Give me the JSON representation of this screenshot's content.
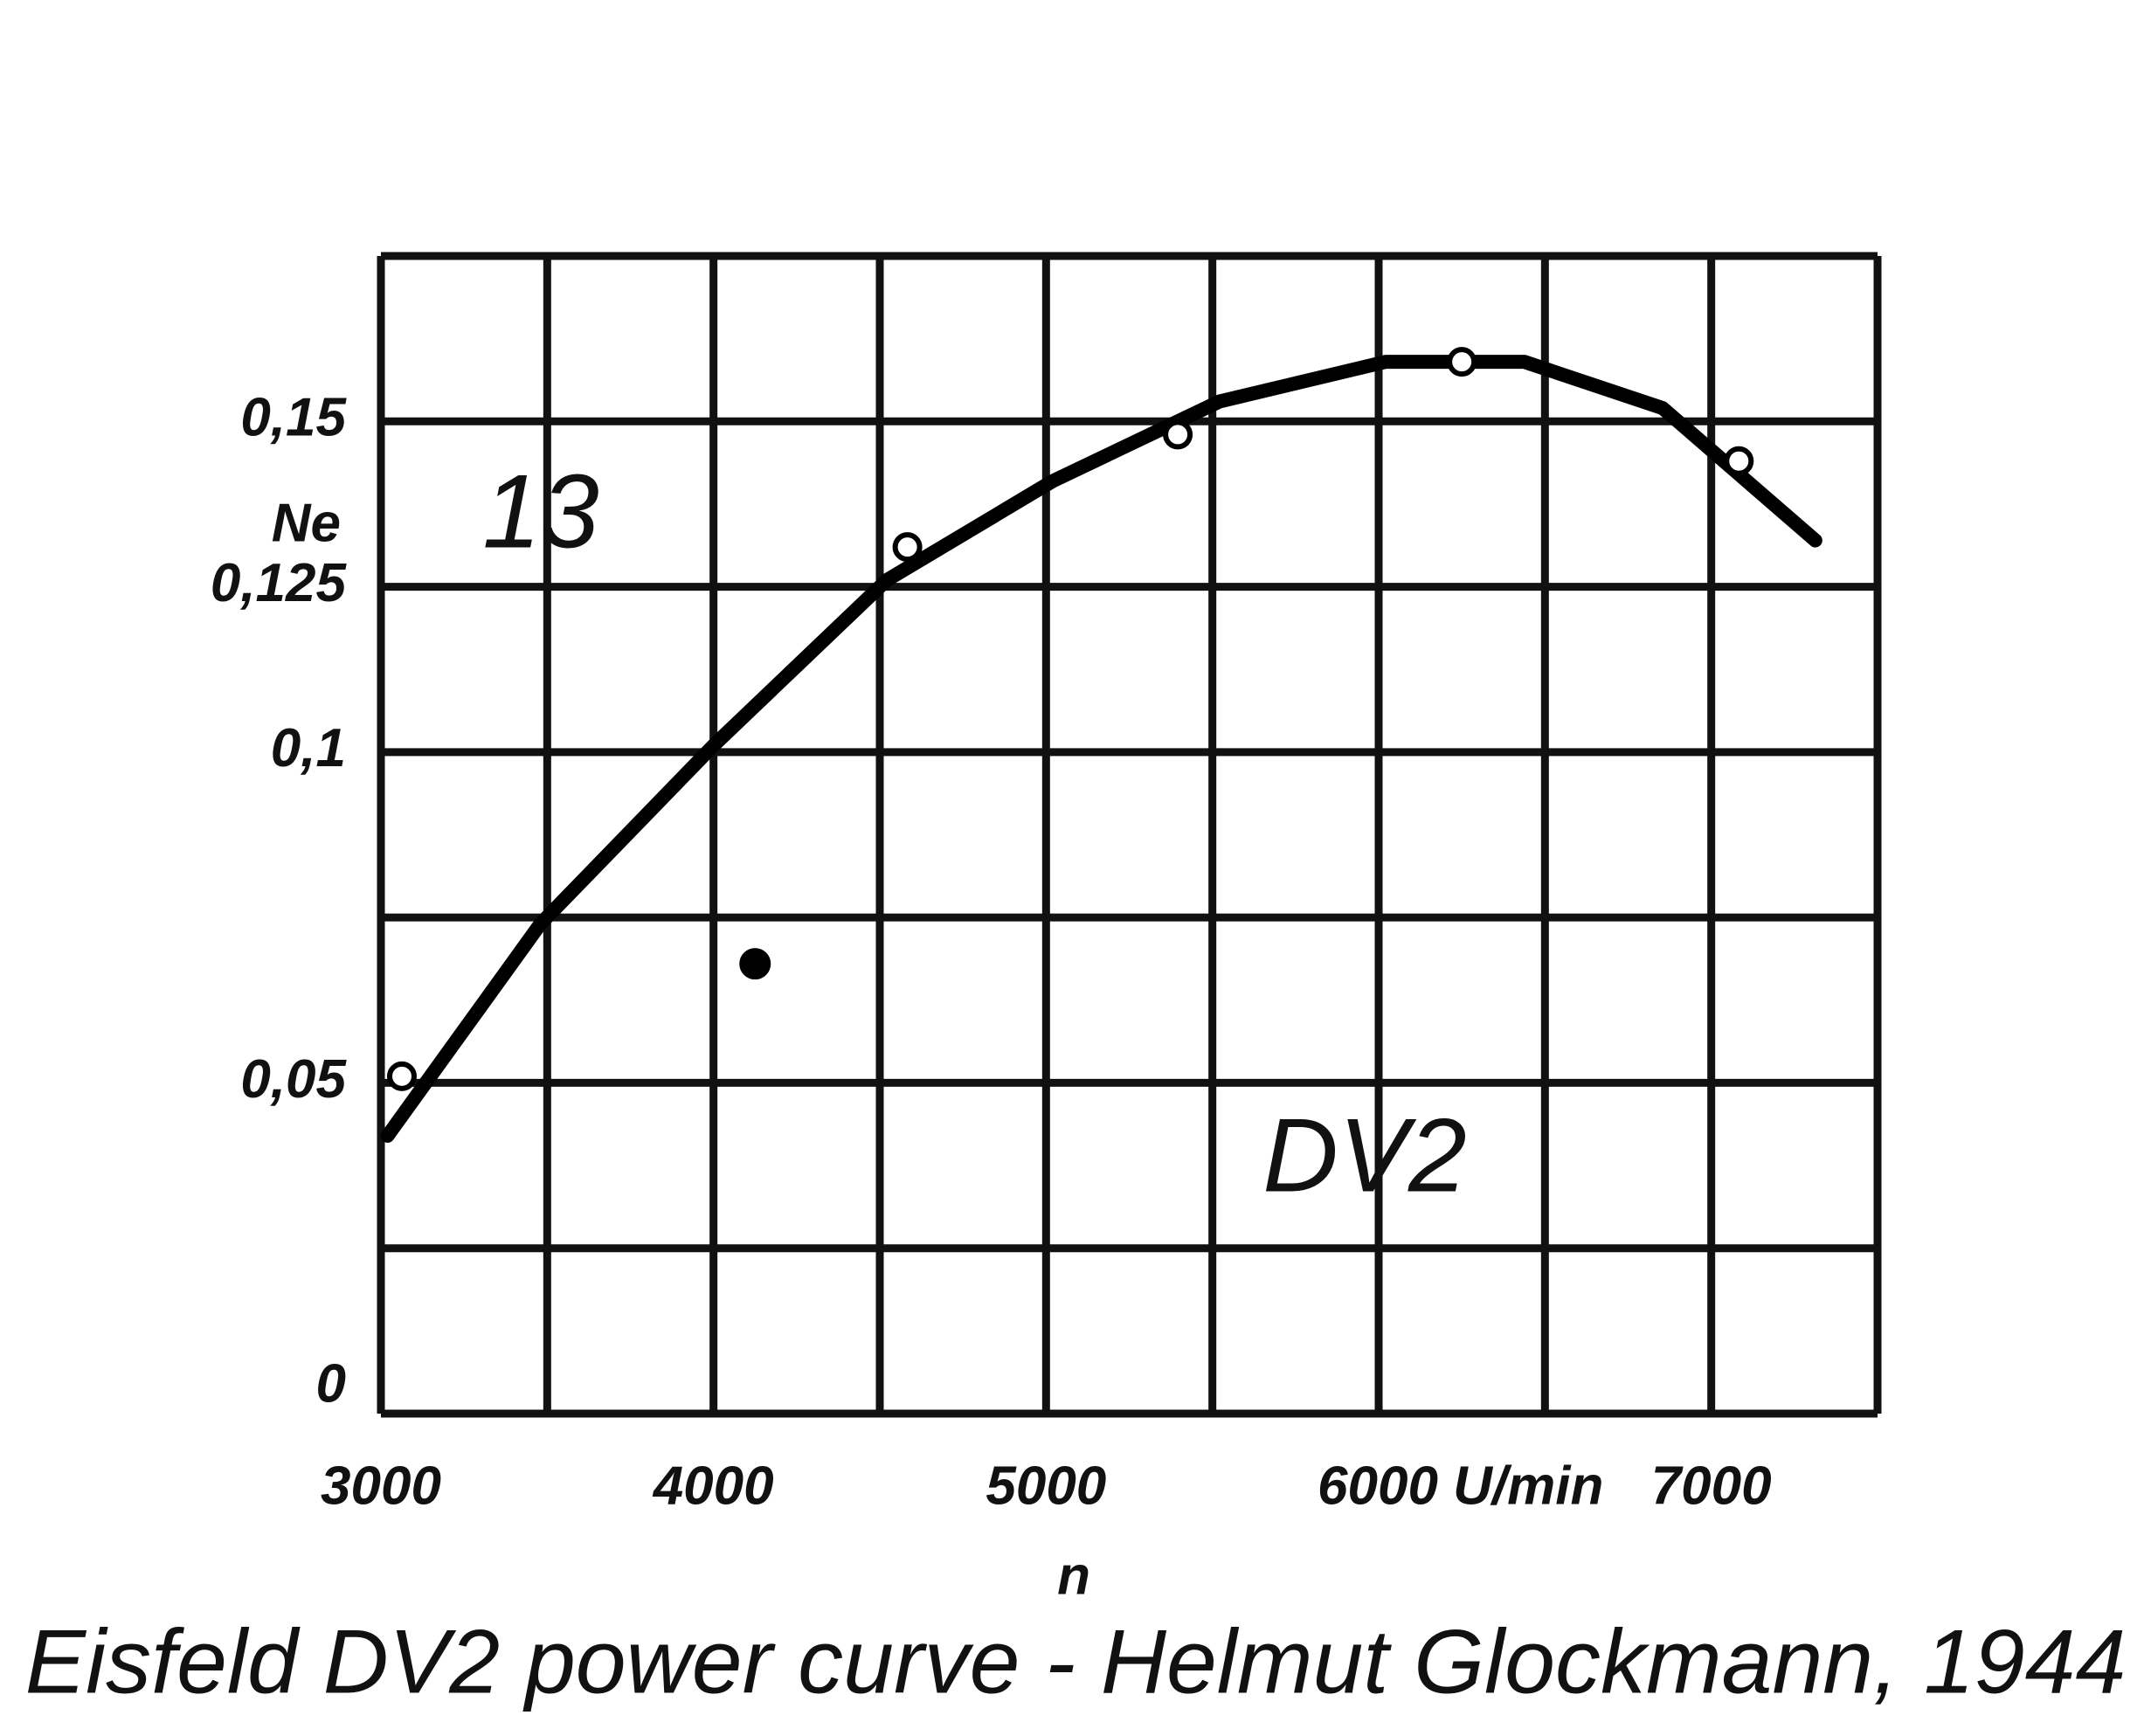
{
  "chart_data": {
    "type": "line",
    "caption": "Eisfeld DV2 power curve - Helmut Glockmann, 1944",
    "ylabel": "Ne",
    "xlabel": "n",
    "annotations": [
      "13",
      "DV2"
    ],
    "xlim": [
      3000,
      7500
    ],
    "ylim": [
      0,
      0.175
    ],
    "xticks": [
      3000,
      4000,
      5000,
      {
        "value": 6000,
        "label": "6000 U/min"
      },
      7000
    ],
    "yticks": [
      0,
      {
        "value": 0.05,
        "label": "0,05"
      },
      {
        "value": 0.1,
        "label": "0,1"
      },
      {
        "value": 0.125,
        "label": "0,125"
      },
      {
        "value": 0.15,
        "label": "0,15"
      }
    ],
    "xgrid": [
      3000,
      3500,
      4000,
      4500,
      5000,
      5500,
      6000,
      6500,
      7000,
      7500
    ],
    "ygrid": [
      0,
      0.025,
      0.05,
      0.075,
      0.1,
      0.125,
      0.15,
      0.175
    ],
    "grid": true,
    "series": [
      {
        "style": "line",
        "color": "#000000",
        "x": [
          3020,
          3479,
          4000,
          4521,
          5021,
          5521,
          6021,
          6438,
          6854,
          7313
        ],
        "values": [
          0.042,
          0.074,
          0.101,
          0.126,
          0.141,
          0.153,
          0.159,
          0.159,
          0.152,
          0.132
        ]
      },
      {
        "style": "open",
        "color": "#000000",
        "x": [
          3063,
          4583,
          5396,
          6250,
          7083
        ],
        "values": [
          0.051,
          0.131,
          0.148,
          0.159,
          0.144
        ]
      },
      {
        "style": "filled",
        "color": "#000000",
        "x": [
          4125
        ],
        "values": [
          0.068
        ]
      }
    ]
  }
}
